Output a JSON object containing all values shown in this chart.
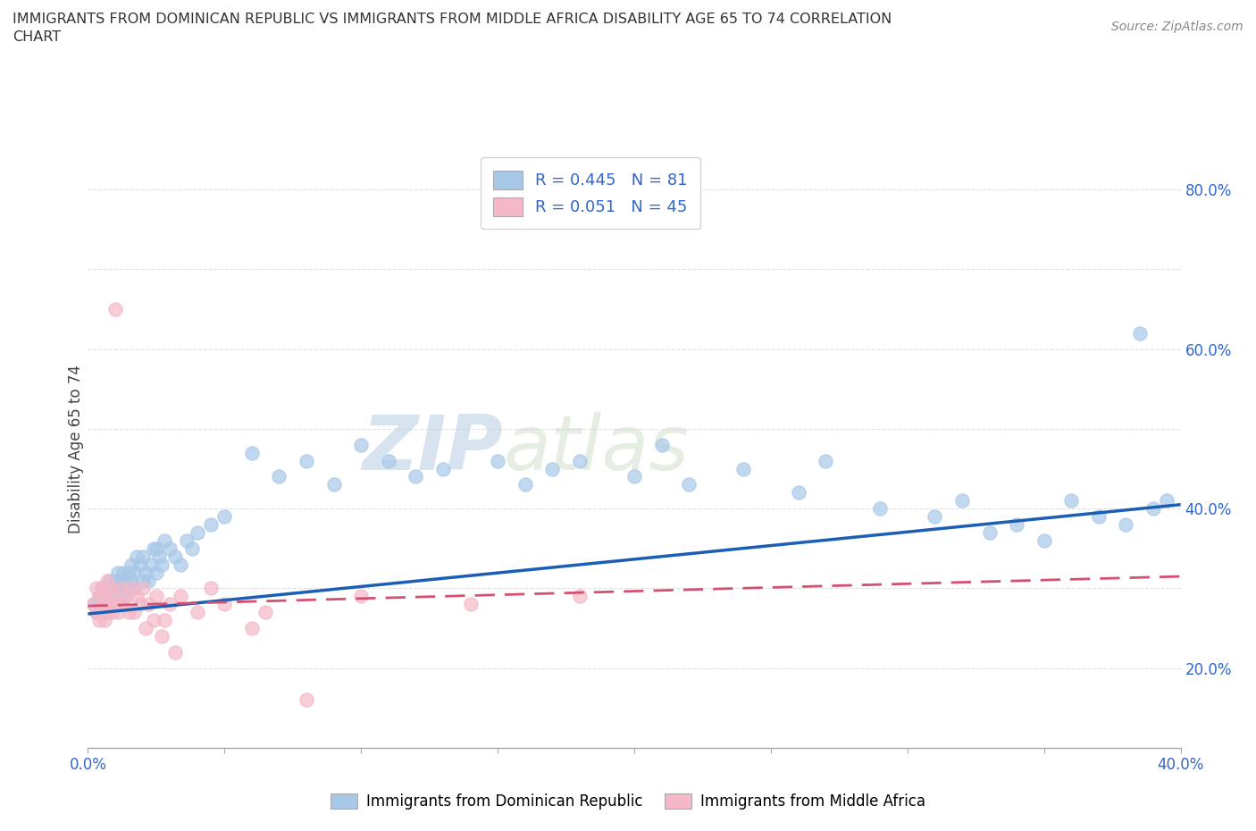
{
  "title_line1": "IMMIGRANTS FROM DOMINICAN REPUBLIC VS IMMIGRANTS FROM MIDDLE AFRICA DISABILITY AGE 65 TO 74 CORRELATION",
  "title_line2": "CHART",
  "source_text": "Source: ZipAtlas.com",
  "ylabel_label": "Disability Age 65 to 74",
  "xlim": [
    0.0,
    0.4
  ],
  "ylim": [
    0.1,
    0.85
  ],
  "xticks": [
    0.0,
    0.05,
    0.1,
    0.15,
    0.2,
    0.25,
    0.3,
    0.35,
    0.4
  ],
  "yticks": [
    0.1,
    0.2,
    0.3,
    0.4,
    0.5,
    0.6,
    0.7,
    0.8
  ],
  "legend_r1": "R = 0.445",
  "legend_n1": "N = 81",
  "legend_r2": "R = 0.051",
  "legend_n2": "N = 45",
  "color_blue": "#a8c8e8",
  "color_pink": "#f4b8c8",
  "color_blue_line": "#1a5fb4",
  "color_pink_line": "#d45070",
  "watermark_zip": "ZIP",
  "watermark_atlas": "atlas",
  "blue_scatter_x": [
    0.002,
    0.003,
    0.004,
    0.004,
    0.005,
    0.005,
    0.006,
    0.006,
    0.007,
    0.007,
    0.008,
    0.008,
    0.009,
    0.009,
    0.01,
    0.01,
    0.011,
    0.011,
    0.012,
    0.012,
    0.013,
    0.013,
    0.014,
    0.014,
    0.015,
    0.015,
    0.016,
    0.016,
    0.017,
    0.017,
    0.018,
    0.019,
    0.02,
    0.02,
    0.021,
    0.022,
    0.023,
    0.024,
    0.025,
    0.025,
    0.026,
    0.027,
    0.028,
    0.03,
    0.032,
    0.034,
    0.036,
    0.038,
    0.04,
    0.045,
    0.05,
    0.06,
    0.07,
    0.08,
    0.09,
    0.1,
    0.11,
    0.12,
    0.13,
    0.15,
    0.16,
    0.17,
    0.18,
    0.2,
    0.21,
    0.22,
    0.24,
    0.26,
    0.27,
    0.29,
    0.31,
    0.32,
    0.33,
    0.34,
    0.35,
    0.36,
    0.37,
    0.38,
    0.385,
    0.39,
    0.395
  ],
  "blue_scatter_y": [
    0.28,
    0.27,
    0.29,
    0.28,
    0.28,
    0.3,
    0.27,
    0.29,
    0.28,
    0.3,
    0.29,
    0.31,
    0.28,
    0.3,
    0.29,
    0.31,
    0.3,
    0.32,
    0.29,
    0.31,
    0.3,
    0.32,
    0.29,
    0.31,
    0.3,
    0.32,
    0.31,
    0.33,
    0.3,
    0.32,
    0.34,
    0.33,
    0.31,
    0.34,
    0.32,
    0.31,
    0.33,
    0.35,
    0.32,
    0.35,
    0.34,
    0.33,
    0.36,
    0.35,
    0.34,
    0.33,
    0.36,
    0.35,
    0.37,
    0.38,
    0.39,
    0.47,
    0.44,
    0.46,
    0.43,
    0.48,
    0.46,
    0.44,
    0.45,
    0.46,
    0.43,
    0.45,
    0.46,
    0.44,
    0.48,
    0.43,
    0.45,
    0.42,
    0.46,
    0.4,
    0.39,
    0.41,
    0.37,
    0.38,
    0.36,
    0.41,
    0.39,
    0.38,
    0.62,
    0.4,
    0.41
  ],
  "pink_scatter_x": [
    0.002,
    0.003,
    0.003,
    0.004,
    0.004,
    0.005,
    0.005,
    0.006,
    0.006,
    0.007,
    0.007,
    0.008,
    0.008,
    0.009,
    0.009,
    0.01,
    0.01,
    0.011,
    0.012,
    0.013,
    0.014,
    0.015,
    0.016,
    0.017,
    0.018,
    0.019,
    0.02,
    0.021,
    0.022,
    0.024,
    0.025,
    0.027,
    0.028,
    0.03,
    0.032,
    0.034,
    0.04,
    0.045,
    0.05,
    0.06,
    0.065,
    0.08,
    0.1,
    0.14,
    0.18
  ],
  "pink_scatter_y": [
    0.28,
    0.27,
    0.3,
    0.26,
    0.29,
    0.27,
    0.3,
    0.26,
    0.29,
    0.27,
    0.31,
    0.28,
    0.3,
    0.27,
    0.29,
    0.28,
    0.65,
    0.27,
    0.3,
    0.28,
    0.29,
    0.27,
    0.3,
    0.27,
    0.29,
    0.28,
    0.3,
    0.25,
    0.28,
    0.26,
    0.29,
    0.24,
    0.26,
    0.28,
    0.22,
    0.29,
    0.27,
    0.3,
    0.28,
    0.25,
    0.27,
    0.16,
    0.29,
    0.28,
    0.29
  ],
  "blue_line_x": [
    0.0,
    0.4
  ],
  "blue_line_y": [
    0.268,
    0.405
  ],
  "pink_line_x": [
    0.0,
    0.4
  ],
  "pink_line_y": [
    0.278,
    0.315
  ],
  "grid_color": "#dddddd",
  "background_color": "#ffffff",
  "legend_blue_label": "Immigrants from Dominican Republic",
  "legend_pink_label": "Immigrants from Middle Africa"
}
